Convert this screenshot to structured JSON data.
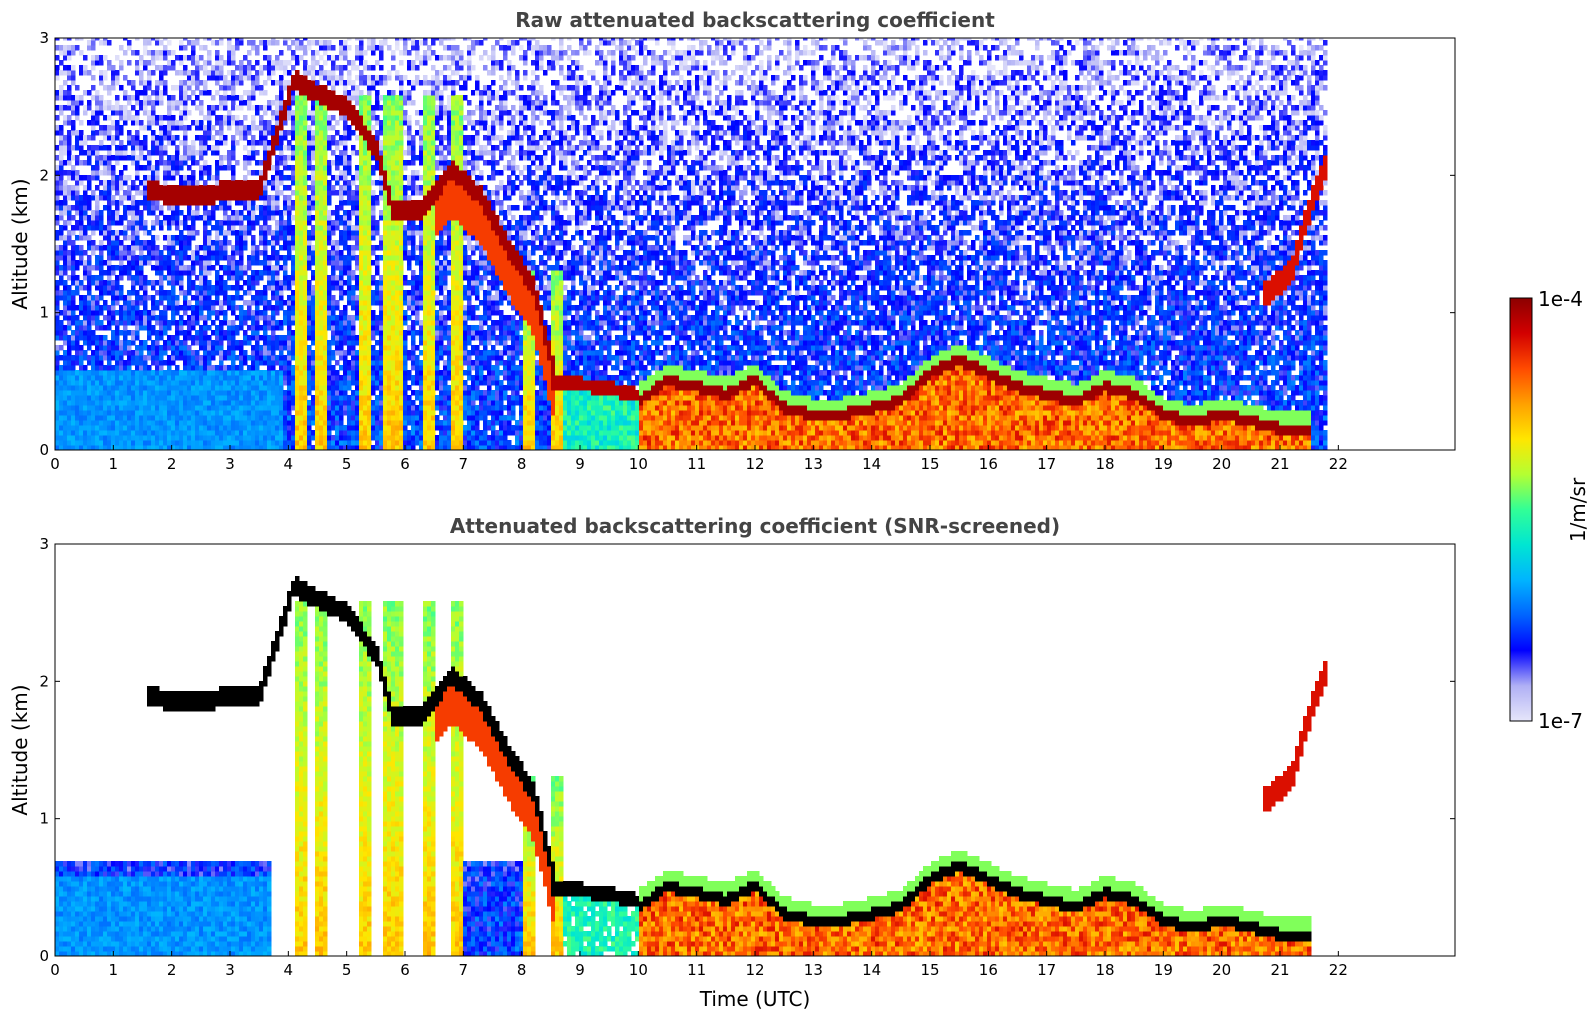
{
  "chart_data": [
    {
      "type": "heatmap",
      "title": "Raw attenuated backscattering coefficient",
      "xlabel": "",
      "ylabel": "Altitude (km)",
      "xlim": [
        0,
        24
      ],
      "ylim": [
        0,
        3
      ],
      "xticks": [
        "0",
        "1",
        "2",
        "3",
        "4",
        "5",
        "6",
        "7",
        "8",
        "9",
        "10",
        "11",
        "12",
        "13",
        "14",
        "15",
        "16",
        "17",
        "18",
        "19",
        "20",
        "21",
        "22"
      ],
      "yticks": [
        "0",
        "1",
        "2",
        "3"
      ],
      "data_end_time": 21.8,
      "screened": false,
      "features": {
        "boundary_layer_top_km": [
          [
            8.5,
            0.5
          ],
          [
            9.0,
            0.48
          ],
          [
            9.5,
            0.45
          ],
          [
            10.0,
            0.4
          ],
          [
            10.5,
            0.55
          ],
          [
            11.0,
            0.5
          ],
          [
            11.5,
            0.45
          ],
          [
            12.0,
            0.55
          ],
          [
            12.5,
            0.35
          ],
          [
            13.0,
            0.3
          ],
          [
            13.5,
            0.3
          ],
          [
            14.0,
            0.35
          ],
          [
            14.5,
            0.4
          ],
          [
            15.0,
            0.6
          ],
          [
            15.5,
            0.7
          ],
          [
            16.0,
            0.6
          ],
          [
            16.5,
            0.5
          ],
          [
            17.0,
            0.45
          ],
          [
            17.5,
            0.4
          ],
          [
            18.0,
            0.5
          ],
          [
            18.5,
            0.45
          ],
          [
            19.0,
            0.3
          ],
          [
            19.5,
            0.25
          ],
          [
            20.0,
            0.3
          ],
          [
            20.5,
            0.25
          ],
          [
            21.0,
            0.2
          ],
          [
            21.5,
            0.2
          ],
          [
            21.8,
            0.15
          ]
        ],
        "elevated_layer_km": [
          [
            1.6,
            1.9
          ],
          [
            2.0,
            1.85
          ],
          [
            2.5,
            1.85
          ],
          [
            3.0,
            1.9
          ],
          [
            3.5,
            1.9
          ],
          [
            4.1,
            2.7
          ],
          [
            4.5,
            2.6
          ],
          [
            5.0,
            2.5
          ],
          [
            5.5,
            2.2
          ],
          [
            5.8,
            1.75
          ],
          [
            6.3,
            1.75
          ],
          [
            6.8,
            2.05
          ],
          [
            7.3,
            1.85
          ],
          [
            7.8,
            1.45
          ],
          [
            8.2,
            1.2
          ],
          [
            8.6,
            0.5
          ]
        ],
        "upper_cloud_km": [
          [
            20.8,
            1.15
          ],
          [
            21.2,
            1.3
          ],
          [
            21.5,
            1.75
          ],
          [
            21.8,
            2.1
          ]
        ]
      }
    },
    {
      "type": "heatmap",
      "title": "Attenuated backscattering coefficient (SNR-screened)",
      "xlabel": "Time (UTC)",
      "ylabel": "Altitude (km)",
      "xlim": [
        0,
        24
      ],
      "ylim": [
        0,
        3
      ],
      "xticks": [
        "0",
        "1",
        "2",
        "3",
        "4",
        "5",
        "6",
        "7",
        "8",
        "9",
        "10",
        "11",
        "12",
        "13",
        "14",
        "15",
        "16",
        "17",
        "18",
        "19",
        "20",
        "21",
        "22"
      ],
      "yticks": [
        "0",
        "1",
        "2",
        "3"
      ],
      "data_end_time": 21.8,
      "screened": true
    }
  ],
  "colorbar": {
    "label": "1/m/sr",
    "max_label": "1e-4",
    "min_label": "1e-7",
    "scale": "log",
    "range": [
      1e-07,
      0.0001
    ],
    "colors": [
      "#e6e6fa",
      "#b0b0f5",
      "#0000ff",
      "#0064ff",
      "#00b4ff",
      "#00e6d2",
      "#32ff96",
      "#b4ff32",
      "#ffe600",
      "#ffa000",
      "#ff4b00",
      "#d20000",
      "#8c0000"
    ]
  }
}
